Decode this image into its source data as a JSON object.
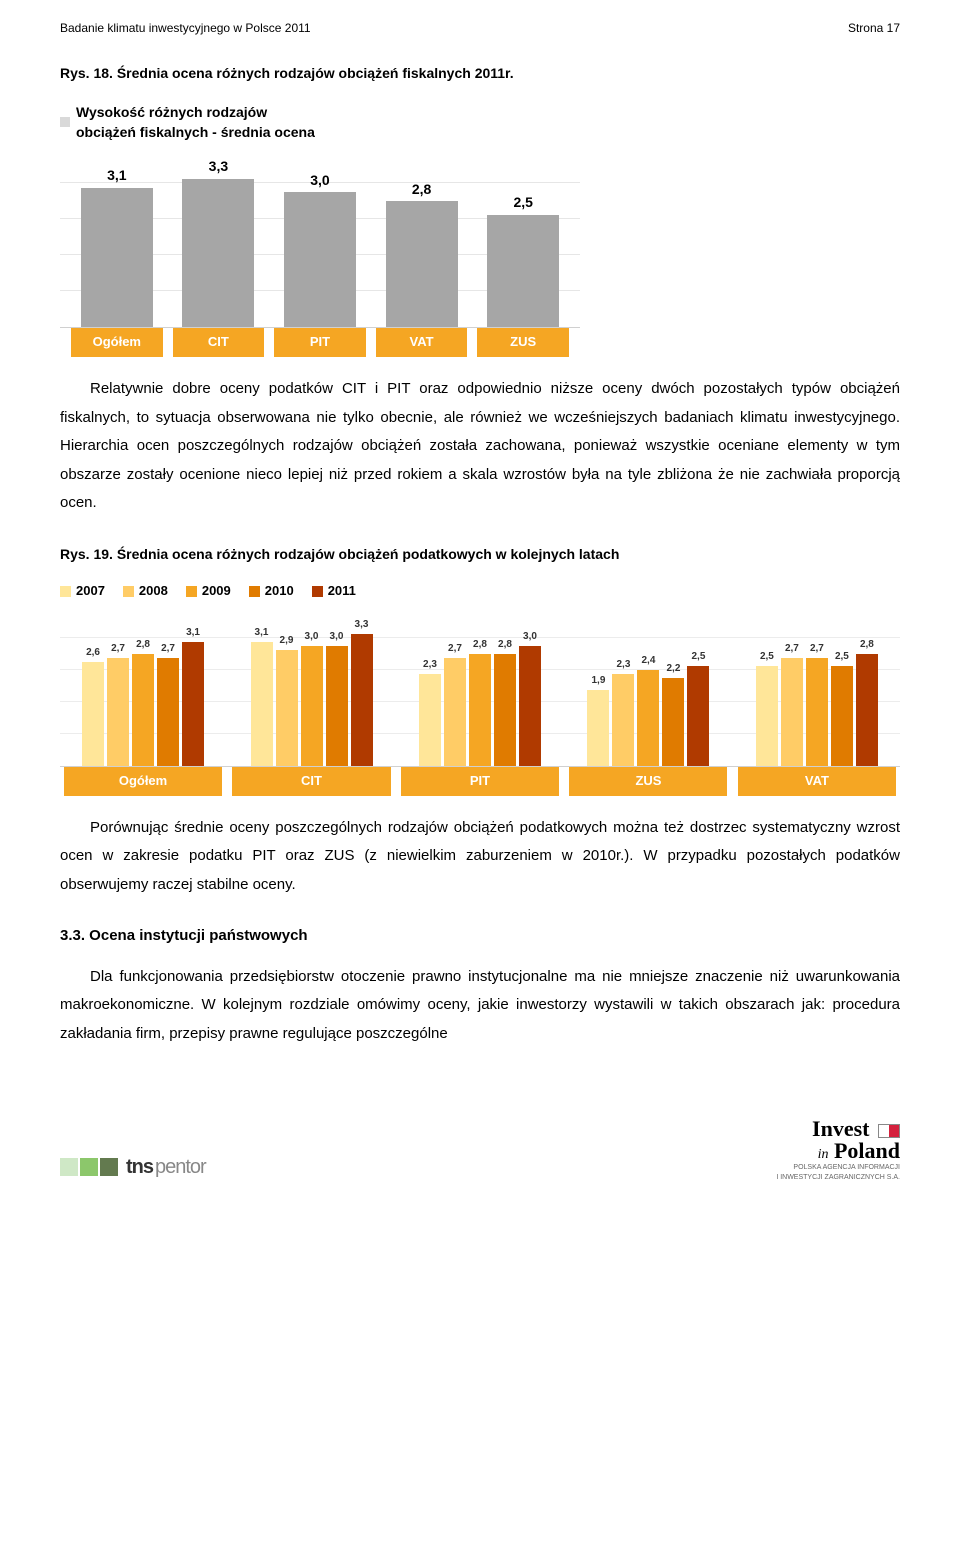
{
  "header": {
    "left": "Badanie klimatu inwestycyjnego w Polsce 2011",
    "right": "Strona 17"
  },
  "fig18_caption": "Rys. 18. Średnia ocena różnych rodzajów obciążeń fiskalnych 2011r.",
  "chart1": {
    "type": "bar",
    "title_line1": "Wysokość różnych rodzajów",
    "title_line2": "obciążeń fiskalnych - średnia ocena",
    "categories": [
      "Ogółem",
      "CIT",
      "PIT",
      "VAT",
      "ZUS"
    ],
    "values": [
      3.1,
      3.3,
      3.0,
      2.8,
      2.5
    ],
    "value_labels": [
      "3,1",
      "3,3",
      "3,0",
      "2,8",
      "2,5"
    ],
    "bar_color": "#a6a6a6",
    "category_bg": "#f5a623",
    "category_fg": "#ffffff",
    "grid_color": "#e6e6e6",
    "ymax": 4.0,
    "gridlines": 4
  },
  "para1": "Relatywnie dobre oceny podatków CIT i PIT oraz odpowiednio niższe oceny dwóch pozostałych typów obciążeń fiskalnych, to sytuacja obserwowana nie tylko obecnie, ale również we wcześniejszych badaniach klimatu inwestycyjnego. Hierarchia ocen poszczególnych rodzajów obciążeń została zachowana, ponieważ wszystkie oceniane elementy w tym obszarze zostały ocenione nieco lepiej niż przed rokiem a skala wzrostów była na tyle zbliżona że nie zachwiała proporcją ocen.",
  "fig19_caption": "Rys. 19. Średnia ocena różnych rodzajów obciążeń podatkowych w kolejnych latach",
  "chart2": {
    "type": "grouped-bar",
    "years": [
      "2007",
      "2008",
      "2009",
      "2010",
      "2011"
    ],
    "year_colors": [
      "#ffe699",
      "#ffcc66",
      "#f5a623",
      "#e07b00",
      "#b03a00"
    ],
    "categories": [
      "Ogółem",
      "CIT",
      "PIT",
      "ZUS",
      "VAT"
    ],
    "category_bg": "#f5a623",
    "category_fg": "#ffffff",
    "grid_color": "#ececec",
    "ymax": 4.0,
    "gridlines": 4,
    "series": [
      {
        "labels": [
          "2,6",
          "2,7",
          "2,8",
          "2,7",
          "3,1"
        ],
        "values": [
          2.6,
          2.7,
          2.8,
          2.7,
          3.1
        ]
      },
      {
        "labels": [
          "3,1",
          "2,9",
          "3,0",
          "3,0",
          "3,3"
        ],
        "values": [
          3.1,
          2.9,
          3.0,
          3.0,
          3.3
        ]
      },
      {
        "labels": [
          "2,3",
          "2,7",
          "2,8",
          "2,8",
          "3,0"
        ],
        "values": [
          2.3,
          2.7,
          2.8,
          2.8,
          3.0
        ]
      },
      {
        "labels": [
          "1,9",
          "2,3",
          "2,4",
          "2,2",
          "2,5"
        ],
        "values": [
          1.9,
          2.3,
          2.4,
          2.2,
          2.5
        ]
      },
      {
        "labels": [
          "2,5",
          "2,7",
          "2,7",
          "2,5",
          "2,8"
        ],
        "values": [
          2.5,
          2.7,
          2.7,
          2.5,
          2.8
        ]
      }
    ]
  },
  "para2": "Porównując średnie oceny poszczególnych rodzajów obciążeń podatkowych można też dostrzec systematyczny wzrost ocen w zakresie podatku PIT oraz ZUS (z niewielkim zaburzeniem w 2010r.). W przypadku pozostałych podatków obserwujemy  raczej stabilne oceny.",
  "section33_heading": "3.3. Ocena instytucji państwowych",
  "para3": "Dla funkcjonowania przedsiębiorstw otoczenie prawno instytucjonalne ma nie mniejsze znaczenie niż uwarunkowania makroekonomiczne. W kolejnym rozdziale omówimy oceny, jakie inwestorzy wystawili w takich obszarach jak: procedura zakładania firm, przepisy prawne regulujące poszczególne",
  "footer": {
    "tns_colors": [
      "#cfe8c6",
      "#8cc76b",
      "#637a4f"
    ],
    "tns_text1": "tns",
    "tns_text2": "pentor",
    "invest_line1a": "Invest",
    "invest_line1b": "in",
    "invest_line1c": "Poland",
    "invest_sub1": "POLSKA AGENCJA INFORMACJI",
    "invest_sub2": "I INWESTYCJI ZAGRANICZNYCH S.A."
  }
}
